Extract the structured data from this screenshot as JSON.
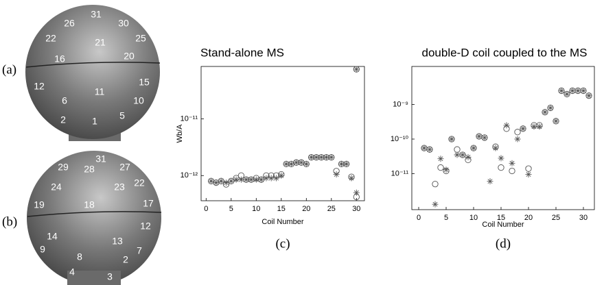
{
  "photo_a": {
    "label": "(a)",
    "numbers": [
      "31",
      "26",
      "30",
      "22",
      "25",
      "21",
      "16",
      "20",
      "12",
      "11",
      "15",
      "6",
      "10",
      "2",
      "1",
      "5"
    ]
  },
  "photo_b": {
    "label": "(b)",
    "numbers": [
      "31",
      "29",
      "28",
      "27",
      "24",
      "23",
      "22",
      "19",
      "18",
      "17",
      "12",
      "14",
      "13",
      "9",
      "7",
      "8",
      "2",
      "4",
      "3"
    ]
  },
  "chart_data": [
    {
      "type": "scatter",
      "title": "Stand-alone MS",
      "caption": "(c)",
      "x_label": "Coil Number",
      "y_label": "Wb/A",
      "log_y": true,
      "xlim": [
        -1,
        31.6
      ],
      "ylim": [
        3.6e-13,
        8.4e-11
      ],
      "xticks": [
        0,
        5,
        10,
        15,
        20,
        25,
        30
      ],
      "yticks": [
        {
          "value": 1e-12,
          "label": "10⁻¹²"
        },
        {
          "value": 1e-11,
          "label": "10⁻¹¹"
        }
      ],
      "x": [
        1,
        2,
        3,
        4,
        5,
        6,
        7,
        8,
        9,
        10,
        11,
        12,
        13,
        14,
        15,
        16,
        17,
        18,
        19,
        20,
        21,
        22,
        23,
        24,
        25,
        26,
        27,
        28,
        29,
        30,
        30
      ],
      "series": [
        {
          "marker": "circle",
          "color": "#555555",
          "values": [
            8e-13,
            7.5e-13,
            8e-13,
            7e-13,
            8e-13,
            9e-13,
            1e-12,
            8.5e-13,
            8.5e-13,
            9e-13,
            8.5e-13,
            1e-12,
            1e-12,
            1e-12,
            1.05e-12,
            1.6e-12,
            1.6e-12,
            1.7e-12,
            1.7e-12,
            1.6e-12,
            2.1e-12,
            2.1e-12,
            2.1e-12,
            2.1e-12,
            2.1e-12,
            1.2e-12,
            1.6e-12,
            1.6e-12,
            9.5e-13,
            4.2e-13,
            7.5e-11
          ]
        },
        {
          "marker": "asterisk",
          "color": "#555555",
          "values": [
            8e-13,
            7.5e-13,
            8e-13,
            7.5e-13,
            8e-13,
            8.5e-13,
            8.5e-13,
            8.5e-13,
            8.5e-13,
            8.5e-13,
            8.5e-13,
            9e-13,
            9e-13,
            9e-13,
            1e-12,
            1.6e-12,
            1.6e-12,
            1.7e-12,
            1.7e-12,
            1.6e-12,
            2.1e-12,
            2.1e-12,
            2.1e-12,
            2.1e-12,
            2.1e-12,
            1.05e-12,
            1.6e-12,
            1.6e-12,
            9e-13,
            5e-13,
            7.5e-11
          ]
        }
      ]
    },
    {
      "type": "scatter",
      "title": "double-D coil coupled to the MS",
      "caption": "(d)",
      "x_label": "Coil Number",
      "log_y": true,
      "xlim": [
        -1.25,
        32
      ],
      "ylim": [
        9.1e-13,
        1.26e-08
      ],
      "xticks": [
        0,
        5,
        10,
        15,
        20,
        25,
        30
      ],
      "yticks": [
        {
          "value": 1e-11,
          "label": "10⁻¹¹"
        },
        {
          "value": 1e-10,
          "label": "10⁻¹⁰"
        },
        {
          "value": 1e-09,
          "label": "10⁻⁹"
        }
      ],
      "x": [
        1,
        2,
        3,
        4,
        5,
        6,
        7,
        8,
        9,
        10,
        11,
        12,
        13,
        14,
        15,
        16,
        17,
        18,
        19,
        20,
        21,
        22,
        23,
        24,
        25,
        26,
        27,
        28,
        29,
        30,
        31
      ],
      "series": [
        {
          "marker": "circle",
          "color": "#555555",
          "values": [
            5.5e-11,
            5e-11,
            5e-12,
            1.5e-11,
            1.2e-11,
            1e-10,
            5e-11,
            3.5e-11,
            2.5e-11,
            5.5e-11,
            1.2e-10,
            1.1e-10,
            null,
            6e-11,
            1.5e-11,
            2e-10,
            1.2e-11,
            1.6e-10,
            2e-10,
            1.4e-11,
            2.5e-10,
            2.5e-10,
            6e-10,
            8e-10,
            3.3e-10,
            2.5e-09,
            2e-09,
            2.5e-09,
            2.5e-09,
            2.5e-09,
            1.8e-09
          ]
        },
        {
          "marker": "asterisk",
          "color": "#555555",
          "values": [
            5.5e-11,
            5e-11,
            1.3e-12,
            2.7e-11,
            1.3e-11,
            1e-10,
            3.5e-11,
            3.5e-11,
            3e-11,
            5.5e-11,
            1.2e-10,
            1.1e-10,
            6e-12,
            5.5e-11,
            2.8e-11,
            2.5e-10,
            2e-11,
            1e-10,
            2e-10,
            9.5e-12,
            2.3e-10,
            2.3e-10,
            6e-10,
            8e-10,
            3.3e-10,
            2.5e-09,
            2e-09,
            2.5e-09,
            2.5e-09,
            2.5e-09,
            1.8e-09
          ]
        }
      ]
    }
  ]
}
